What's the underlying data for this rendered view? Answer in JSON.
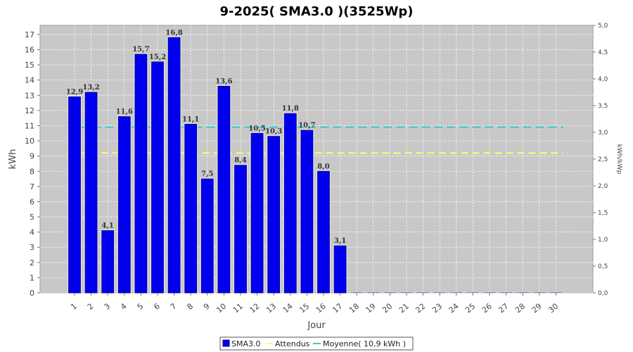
{
  "chart_data": {
    "type": "bar",
    "title": "9-2025( SMA3.0 )(3525Wp)",
    "xlabel": "Jour",
    "ylabel": "kWh",
    "ylabel_right": "kWh/kWp",
    "ylim": [
      0,
      17.6
    ],
    "ylim_right": [
      0,
      5.0
    ],
    "yticks": [
      0,
      1,
      2,
      3,
      4,
      5,
      6,
      7,
      8,
      9,
      10,
      11,
      12,
      13,
      14,
      15,
      16,
      17
    ],
    "yticks_right": [
      "0,0",
      "0,5",
      "1,0",
      "1,5",
      "2,0",
      "2,5",
      "3,0",
      "3,5",
      "4,0",
      "4,5",
      "5,0"
    ],
    "categories": [
      "1",
      "2",
      "3",
      "4",
      "5",
      "6",
      "7",
      "8",
      "9",
      "10",
      "11",
      "12",
      "13",
      "14",
      "15",
      "16",
      "17",
      "18",
      "19",
      "20",
      "21",
      "22",
      "23",
      "24",
      "25",
      "26",
      "27",
      "28",
      "29",
      "30"
    ],
    "series": [
      {
        "name": "SMA3.0",
        "color": "#0000ee",
        "values": [
          12.9,
          13.2,
          4.1,
          11.6,
          15.7,
          15.2,
          16.8,
          11.1,
          7.5,
          13.6,
          8.4,
          10.5,
          10.3,
          11.8,
          10.7,
          8.0,
          3.1,
          0,
          0,
          0,
          0,
          0,
          0,
          0,
          0,
          0,
          0,
          0,
          0,
          0
        ],
        "labels": [
          "12,9",
          "13,2",
          "4,1",
          "11,6",
          "15,7",
          "15,2",
          "16,8",
          "11,1",
          "7,5",
          "13,6",
          "8,4",
          "10,5",
          "10,3",
          "11,8",
          "10,7",
          "8,0",
          "3,1",
          "",
          "",
          "",
          "",
          "",
          "",
          "",
          "",
          "",
          "",
          "",
          "",
          ""
        ]
      },
      {
        "name": "Attendus",
        "color": "#ffff66",
        "type": "line",
        "value": 9.2
      },
      {
        "name": "Moyenne( 10,9 kWh )",
        "color": "#33cccc",
        "type": "line",
        "value": 10.9
      }
    ],
    "grid": true,
    "legend": "bottom"
  }
}
